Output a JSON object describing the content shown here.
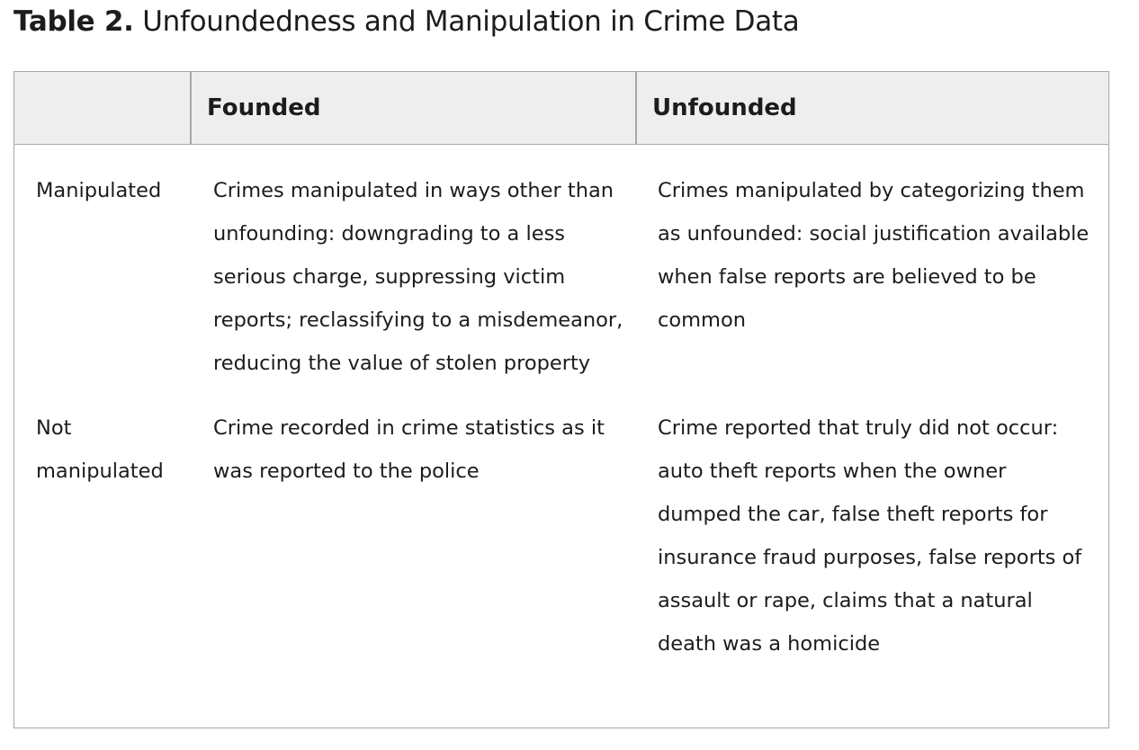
{
  "caption": {
    "label": "Table 2.",
    "title": "Unfoundedness and Manipulation in Crime Data"
  },
  "table": {
    "headers": [
      "",
      "Founded",
      "Unfounded"
    ],
    "rows": [
      {
        "label": "Manipulated",
        "founded": "Crimes manipulated in ways other than unfounding: downgrading to a less serious charge, suppressing victim reports; reclassifying to a misdemeanor, reducing the value of stolen property",
        "unfounded": "Crimes manipulated by categorizing them as unfounded: social justification available when false reports are believed to be common"
      },
      {
        "label": "Not manipulated",
        "founded": "Crime recorded in crime statistics as it was reported to the police",
        "unfounded": "Crime reported that truly did not occur: auto theft reports when the owner dumped the car, false theft reports for insurance fraud purposes, false reports of assault or rape, claims that a natural death was a homicide"
      }
    ]
  }
}
